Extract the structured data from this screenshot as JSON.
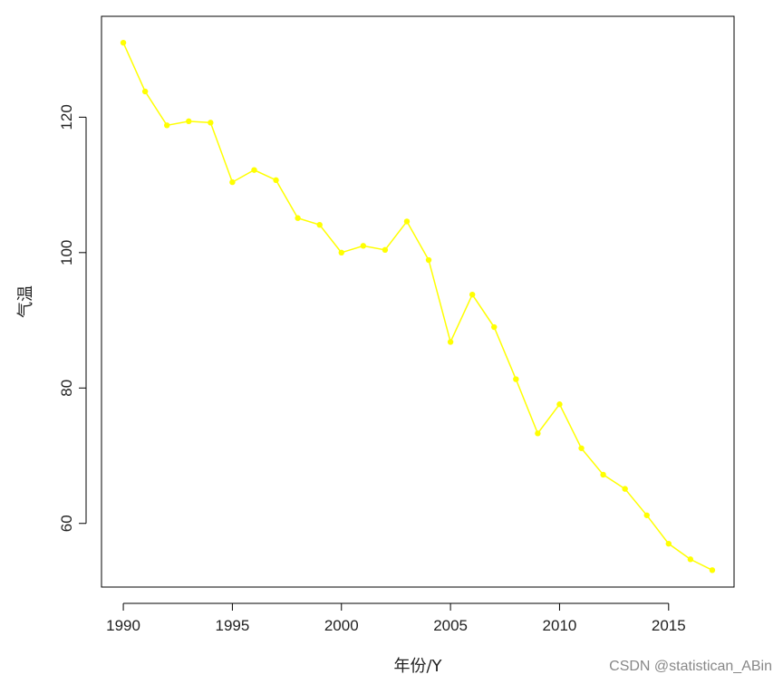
{
  "chart_data": {
    "type": "line",
    "title": "",
    "xlabel": "年份/Y",
    "ylabel": "气温",
    "x": [
      1990,
      1991,
      1992,
      1993,
      1994,
      1995,
      1996,
      1997,
      1998,
      1999,
      2000,
      2001,
      2002,
      2003,
      2004,
      2005,
      2006,
      2007,
      2008,
      2009,
      2010,
      2011,
      2012,
      2013,
      2014,
      2015,
      2016,
      2017
    ],
    "series": [
      {
        "name": "",
        "values": [
          131,
          123.8,
          118.8,
          119.4,
          119.2,
          110.4,
          112.2,
          110.7,
          105.1,
          104.1,
          100,
          101,
          100.4,
          104.6,
          98.9,
          86.8,
          93.8,
          89,
          81.3,
          73.3,
          77.6,
          71.1,
          67.2,
          65.1,
          61.2,
          57,
          54.7,
          53.1
        ],
        "color": "#ffff00"
      }
    ],
    "xticks": [
      "1990",
      "1995",
      "2000",
      "2005",
      "2010",
      "2015"
    ],
    "yticks": [
      "60",
      "80",
      "100",
      "120"
    ],
    "xlim": [
      1989.0,
      2018.0
    ],
    "ylim": [
      50.6,
      134.9
    ],
    "grid": false,
    "legend": "none"
  },
  "watermark": "CSDN @statistican_ABin"
}
